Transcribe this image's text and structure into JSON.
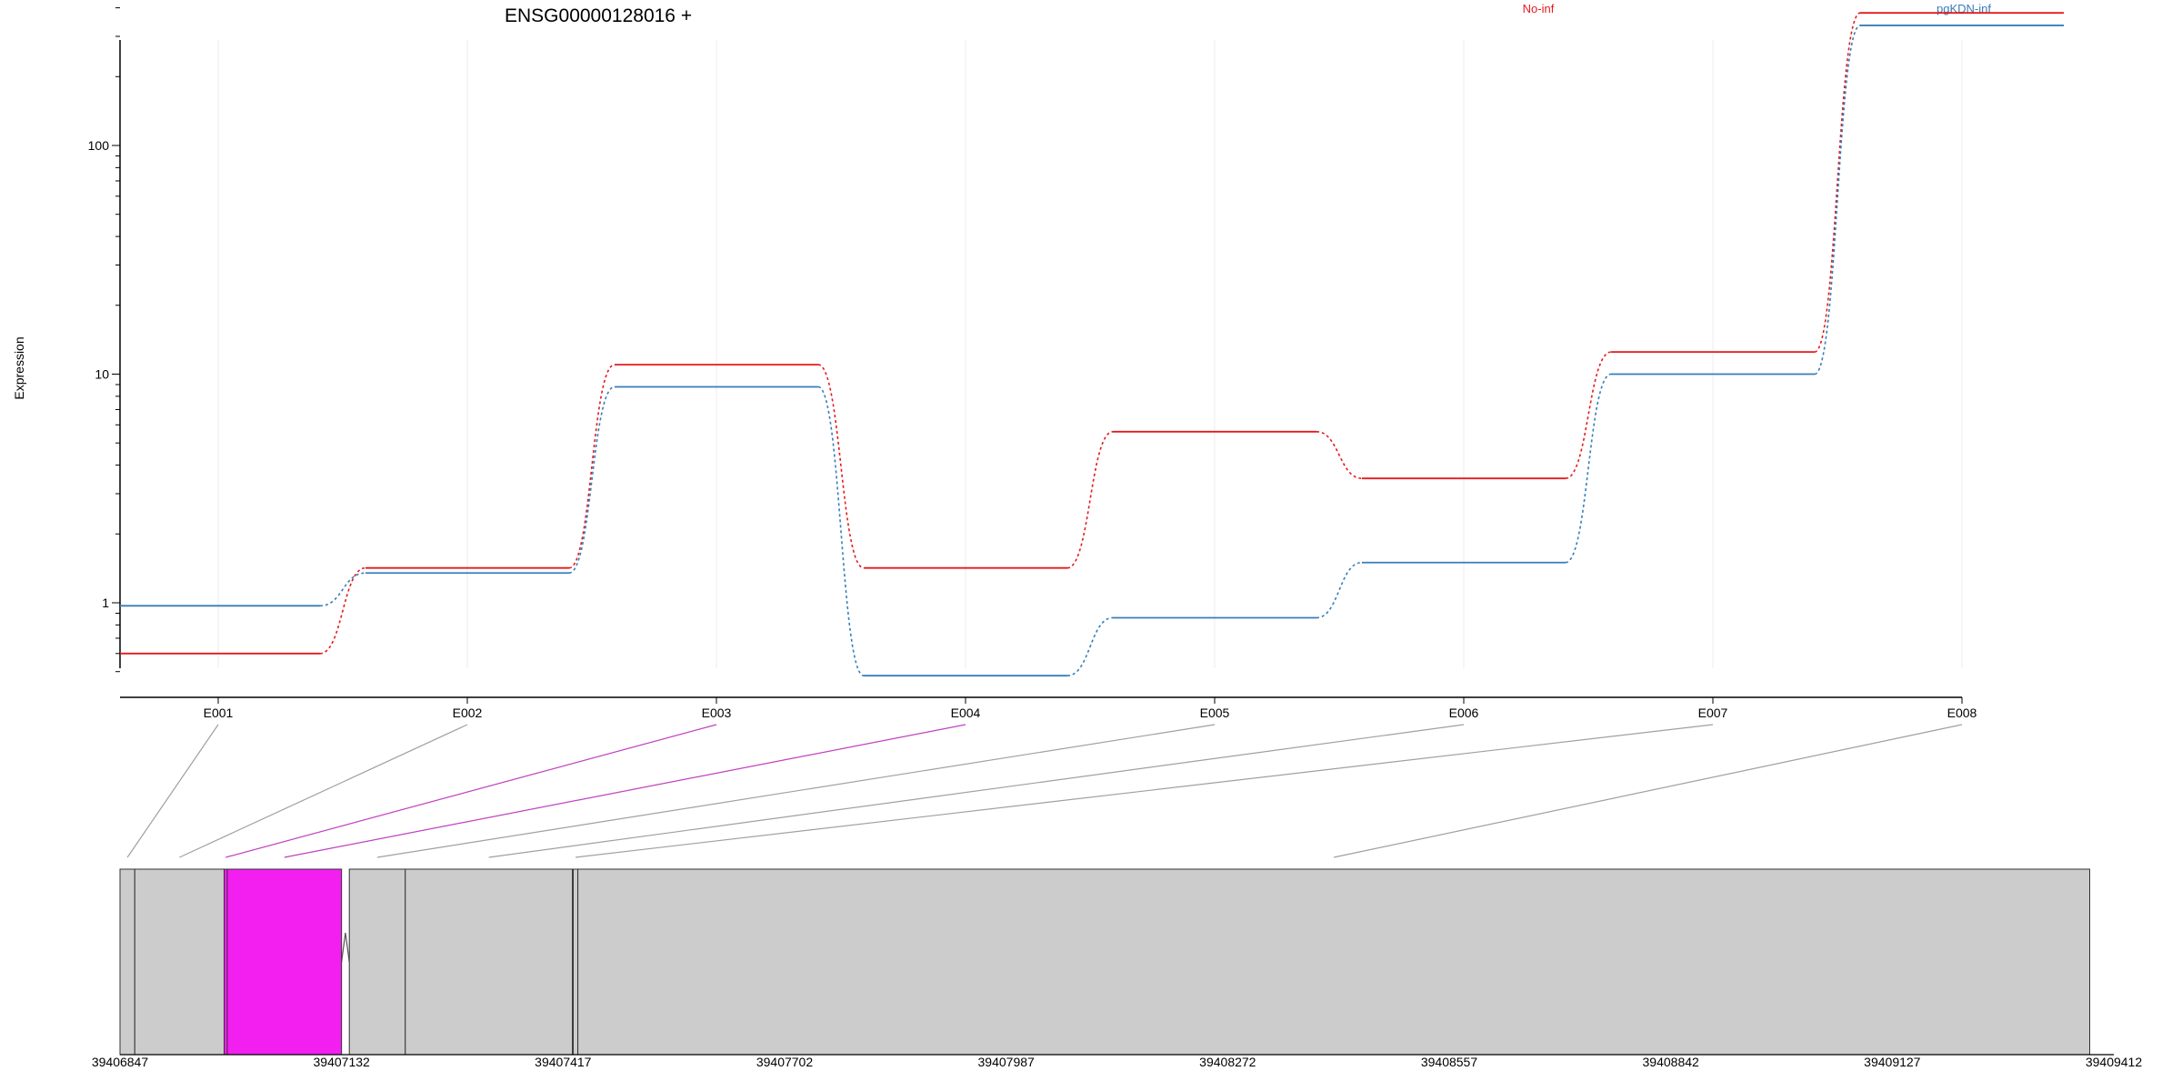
{
  "chart_data": {
    "type": "line",
    "title": "ENSG00000128016 +",
    "ylabel": "Expression",
    "xlabel": "",
    "y_scale": "log",
    "ylim": [
      0.45,
      540
    ],
    "y_major_ticks": [
      1,
      10,
      100
    ],
    "y_tick_labels": [
      "1",
      "10",
      "100"
    ],
    "grid": "vertical lines at exon positions",
    "legend_placement": "top, horizontal",
    "categories": [
      "E001",
      "E002",
      "E003",
      "E004",
      "E005",
      "E006",
      "E007",
      "E008"
    ],
    "highlighted_categories": [
      "E003",
      "E004"
    ],
    "series": [
      {
        "name": "No-inf",
        "color": "#e41a1c",
        "values": [
          0.6,
          1.42,
          11.0,
          1.42,
          5.6,
          3.5,
          12.5,
          380
        ]
      },
      {
        "name": "pgKDN-inf",
        "color": "#377eb8",
        "values": [
          0.97,
          1.35,
          8.8,
          0.48,
          0.86,
          1.5,
          10.0,
          335
        ]
      }
    ],
    "gene_model": {
      "genomic_axis_ticks": [
        "39406847",
        "39407132",
        "39407417",
        "39407702",
        "39407987",
        "39408272",
        "39408557",
        "39408842",
        "39409127",
        "39409412"
      ],
      "exons": [
        {
          "id": "E001",
          "start": 39406847,
          "end": 39406866
        },
        {
          "id": "E002",
          "start": 39406866,
          "end": 39406981
        },
        {
          "id": "E003",
          "start": 39406981,
          "end": 39406985
        },
        {
          "id": "E004",
          "start": 39406985,
          "end": 39407132
        },
        {
          "id": "E005",
          "start": 39407142,
          "end": 39407214
        },
        {
          "id": "E006",
          "start": 39407214,
          "end": 39407429
        },
        {
          "id": "E007",
          "start": 39407430,
          "end": 39407436
        },
        {
          "id": "E008",
          "start": 39407436,
          "end": 39409381
        }
      ],
      "exon_color": "#cccccc",
      "highlight_color": "#f21ff0",
      "connector_color": "#a0a0a0",
      "highlight_connector_color": "#c040c0"
    }
  }
}
